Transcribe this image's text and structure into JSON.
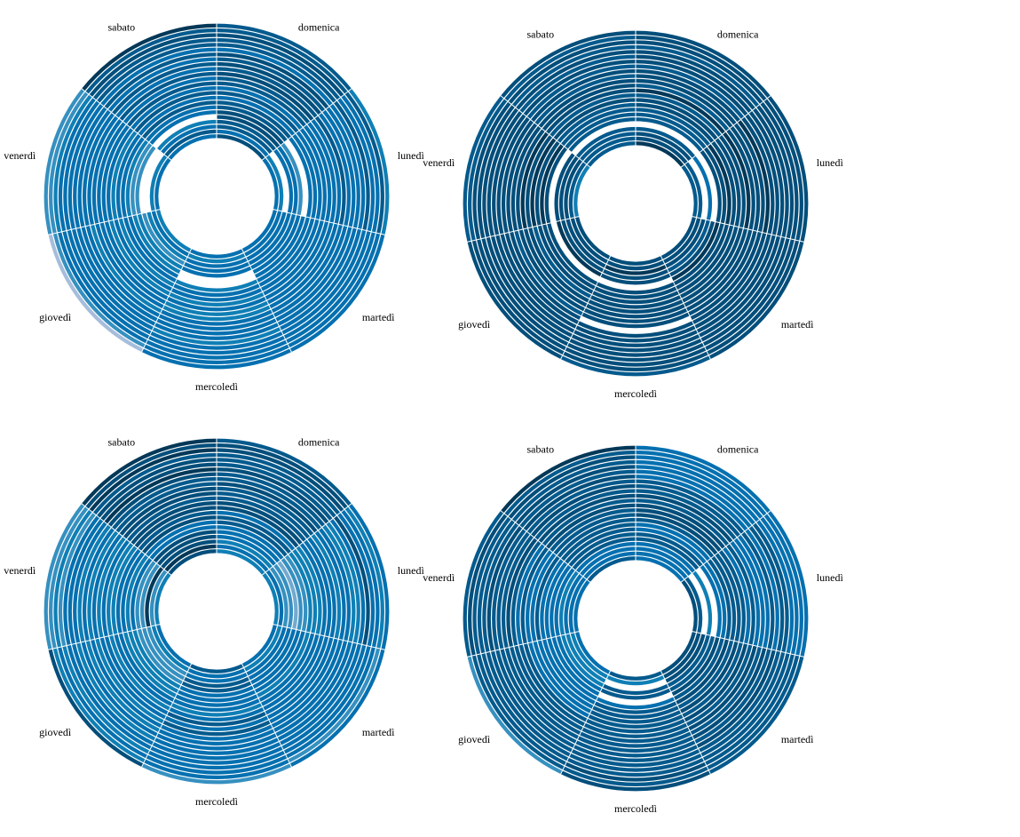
{
  "page": {
    "title": ""
  },
  "chart_data": [
    {
      "type": "radial-heatmap",
      "title": "",
      "categories": [
        "domenica",
        "lunedì",
        "martedì",
        "mercoledì",
        "giovedì",
        "venerdì",
        "sabato"
      ],
      "rings": 24,
      "values": [
        [
          8,
          6,
          7,
          7,
          8,
          8,
          7,
          7,
          6,
          7,
          6,
          7,
          7,
          8,
          7,
          8,
          7,
          8,
          6,
          7,
          7,
          8,
          7,
          7
        ],
        [
          6,
          5,
          0,
          6,
          6,
          4,
          0,
          6,
          6,
          6,
          6,
          6,
          6,
          6,
          7,
          6,
          6,
          6,
          6,
          7,
          6,
          6,
          7,
          5
        ],
        [
          6,
          6,
          6,
          6,
          6,
          6,
          6,
          6,
          6,
          6,
          6,
          6,
          6,
          6,
          6,
          6,
          6,
          6,
          6,
          6,
          6,
          6,
          6,
          6
        ],
        [
          6,
          5,
          6,
          6,
          6,
          0,
          0,
          5,
          6,
          6,
          5,
          6,
          5,
          5,
          6,
          6,
          6,
          6,
          5,
          6,
          6,
          6,
          6,
          6
        ],
        [
          5,
          6,
          5,
          4,
          5,
          5,
          6,
          6,
          5,
          6,
          5,
          6,
          6,
          6,
          5,
          6,
          6,
          6,
          6,
          6,
          6,
          6,
          4,
          2
        ],
        [
          6,
          5,
          0,
          0,
          4,
          4,
          5,
          6,
          6,
          5,
          6,
          6,
          6,
          6,
          6,
          6,
          6,
          6,
          6,
          6,
          6,
          5,
          4,
          4
        ],
        [
          6,
          7,
          6,
          5,
          0,
          6,
          6,
          7,
          6,
          7,
          6,
          7,
          6,
          7,
          6,
          7,
          6,
          7,
          6,
          7,
          7,
          8,
          7,
          9
        ]
      ]
    },
    {
      "type": "radial-heatmap",
      "title": "",
      "categories": [
        "domenica",
        "lunedì",
        "martedì",
        "mercoledì",
        "giovedì",
        "venerdì",
        "sabato"
      ],
      "rings": 24,
      "values": [
        [
          9,
          8,
          8,
          7,
          0,
          7,
          7,
          7,
          8,
          8,
          7,
          9,
          7,
          8,
          8,
          8,
          7,
          8,
          8,
          8,
          7,
          8,
          8,
          8
        ],
        [
          7,
          7,
          0,
          6,
          0,
          8,
          8,
          9,
          8,
          8,
          8,
          9,
          8,
          8,
          8,
          9,
          8,
          8,
          8,
          8,
          8,
          8,
          8,
          8
        ],
        [
          8,
          8,
          8,
          7,
          8,
          9,
          8,
          8,
          8,
          8,
          8,
          8,
          8,
          8,
          8,
          8,
          8,
          8,
          8,
          8,
          8,
          8,
          8,
          8
        ],
        [
          8,
          8,
          9,
          8,
          8,
          0,
          8,
          8,
          8,
          8,
          8,
          8,
          8,
          8,
          0,
          8,
          8,
          8,
          8,
          8,
          8,
          8,
          8,
          7
        ],
        [
          8,
          8,
          8,
          8,
          9,
          0,
          8,
          8,
          8,
          7,
          8,
          8,
          8,
          7,
          8,
          8,
          8,
          8,
          8,
          8,
          8,
          8,
          8,
          8
        ],
        [
          5,
          7,
          8,
          8,
          8,
          0,
          8,
          9,
          8,
          9,
          8,
          9,
          8,
          8,
          8,
          8,
          8,
          8,
          8,
          8,
          8,
          8,
          7,
          7
        ],
        [
          7,
          7,
          7,
          7,
          0,
          7,
          7,
          7,
          7,
          8,
          7,
          8,
          8,
          8,
          7,
          8,
          7,
          8,
          7,
          8,
          7,
          8,
          7,
          8
        ]
      ]
    },
    {
      "type": "radial-heatmap",
      "title": "",
      "categories": [
        "domenica",
        "lunedì",
        "martedì",
        "mercoledì",
        "giovedì",
        "venerdì",
        "sabato"
      ],
      "rings": 24,
      "values": [
        [
          5,
          6,
          5,
          6,
          6,
          6,
          7,
          7,
          6,
          8,
          8,
          7,
          7,
          7,
          8,
          7,
          7,
          8,
          7,
          7,
          7,
          8,
          8,
          7
        ],
        [
          5,
          6,
          4,
          4,
          3,
          4,
          4,
          5,
          5,
          5,
          6,
          6,
          6,
          5,
          6,
          6,
          5,
          5,
          6,
          8,
          6,
          6,
          5,
          6
        ],
        [
          6,
          5,
          6,
          6,
          6,
          6,
          6,
          5,
          6,
          6,
          6,
          6,
          6,
          6,
          6,
          6,
          6,
          6,
          6,
          6,
          6,
          6,
          4,
          6
        ],
        [
          7,
          6,
          6,
          7,
          7,
          6,
          6,
          6,
          6,
          5,
          6,
          7,
          6,
          7,
          6,
          6,
          6,
          6,
          6,
          6,
          6,
          6,
          6,
          4
        ],
        [
          6,
          5,
          4,
          4,
          4,
          5,
          5,
          5,
          6,
          6,
          5,
          6,
          6,
          5,
          6,
          5,
          6,
          5,
          6,
          6,
          5,
          6,
          5,
          8
        ],
        [
          5,
          4,
          9,
          4,
          4,
          6,
          5,
          6,
          6,
          5,
          5,
          6,
          5,
          6,
          5,
          6,
          5,
          6,
          6,
          6,
          4,
          5,
          4,
          4
        ],
        [
          8,
          9,
          8,
          8,
          8,
          6,
          6,
          8,
          7,
          8,
          8,
          7,
          8,
          8,
          7,
          7,
          8,
          9,
          8,
          8,
          7,
          9,
          8,
          9
        ]
      ]
    },
    {
      "type": "radial-heatmap",
      "title": "",
      "categories": [
        "domenica",
        "lunedì",
        "martedì",
        "mercoledì",
        "giovedì",
        "venerdì",
        "sabato"
      ],
      "rings": 24,
      "values": [
        [
          6,
          6,
          6,
          6,
          7,
          7,
          6,
          6,
          7,
          8,
          8,
          8,
          7,
          8,
          7,
          7,
          7,
          6,
          6,
          6,
          6,
          6,
          6,
          6
        ],
        [
          8,
          7,
          0,
          5,
          0,
          6,
          6,
          7,
          7,
          7,
          7,
          6,
          7,
          6,
          6,
          6,
          7,
          6,
          7,
          7,
          6,
          6,
          6,
          6
        ],
        [
          8,
          8,
          8,
          7,
          7,
          8,
          7,
          8,
          7,
          8,
          7,
          8,
          7,
          8,
          7,
          8,
          7,
          8,
          7,
          7,
          7,
          7,
          7,
          7
        ],
        [
          7,
          5,
          0,
          7,
          7,
          0,
          6,
          7,
          7,
          7,
          7,
          7,
          7,
          7,
          7,
          7,
          7,
          7,
          7,
          7,
          7,
          8,
          7,
          8
        ],
        [
          6,
          5,
          5,
          5,
          6,
          6,
          6,
          6,
          6,
          6,
          6,
          7,
          7,
          7,
          7,
          7,
          7,
          7,
          7,
          7,
          7,
          7,
          7,
          4
        ],
        [
          6,
          6,
          6,
          5,
          6,
          6,
          6,
          6,
          7,
          6,
          6,
          7,
          6,
          7,
          8,
          7,
          7,
          7,
          8,
          7,
          7,
          7,
          8,
          7
        ],
        [
          7,
          6,
          6,
          6,
          7,
          7,
          7,
          7,
          7,
          7,
          7,
          8,
          7,
          8,
          7,
          8,
          7,
          8,
          7,
          8,
          7,
          8,
          7,
          9
        ]
      ]
    }
  ],
  "colors": {
    "scale": [
      "#ffffff",
      "#d0d1e6",
      "#a6bddb",
      "#74a9cf",
      "#3690c0",
      "#0f7fb5",
      "#0570b0",
      "#045a8d",
      "#034e7b",
      "#023858"
    ],
    "divider": "#ffffff"
  }
}
